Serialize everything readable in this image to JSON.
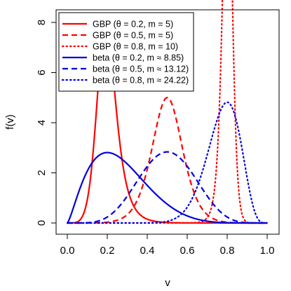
{
  "chart_data": {
    "type": "line",
    "xlabel": "v",
    "ylabel": "f(v)",
    "xlim": [
      0,
      1
    ],
    "ylim": [
      0,
      8
    ],
    "xticks": [
      "0.0",
      "0.2",
      "0.4",
      "0.6",
      "0.8",
      "1.0"
    ],
    "yticks": [
      "0",
      "2",
      "4",
      "6",
      "8"
    ],
    "grid": false,
    "legend_position": "top-left",
    "colors": {
      "red": "#ff0000",
      "blue": "#0000dd"
    },
    "series": [
      {
        "name": "GBP (θ = 0.2, m = 5)",
        "family": "gbp",
        "theta": 0.2,
        "m": 5,
        "color": "#ff0000",
        "linestyle": "solid"
      },
      {
        "name": "GBP (θ = 0.5, m = 5)",
        "family": "gbp",
        "theta": 0.5,
        "m": 5,
        "color": "#ff0000",
        "linestyle": "dashed"
      },
      {
        "name": "GBP (θ = 0.8, m = 10)",
        "family": "gbp",
        "theta": 0.8,
        "m": 10,
        "color": "#ff0000",
        "linestyle": "dotted"
      },
      {
        "name": "beta (θ = 0.2, m ≈ 8.85)",
        "family": "beta",
        "theta": 0.2,
        "m": 8.85,
        "color": "#0000dd",
        "linestyle": "solid"
      },
      {
        "name": "beta (θ = 0.5, m ≈ 13.12)",
        "family": "beta",
        "theta": 0.5,
        "m": 13.12,
        "color": "#0000dd",
        "linestyle": "dashed"
      },
      {
        "name": "beta (θ = 0.8, m ≈ 24.22)",
        "family": "beta",
        "theta": 0.8,
        "m": 24.22,
        "color": "#0000dd",
        "linestyle": "dotted"
      }
    ]
  }
}
